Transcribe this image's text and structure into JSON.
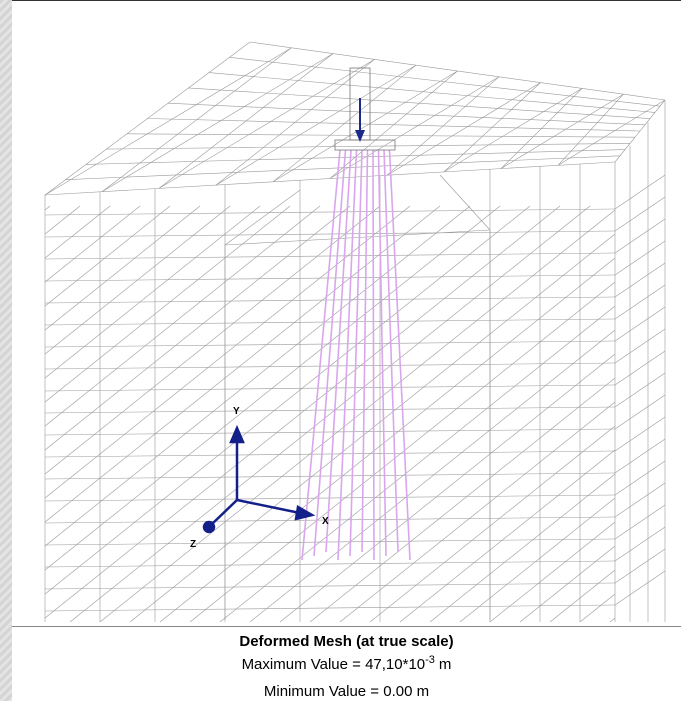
{
  "axes": {
    "y": "Y",
    "x": "X",
    "z": "Z"
  },
  "caption": {
    "title": "Deformed Mesh (at true scale)",
    "max_value": {
      "text": "Maximum Value = 47,10*10",
      "exponent": "-3",
      "unit": "m"
    },
    "min_value": "Minimum Value = 0.00 m"
  }
}
